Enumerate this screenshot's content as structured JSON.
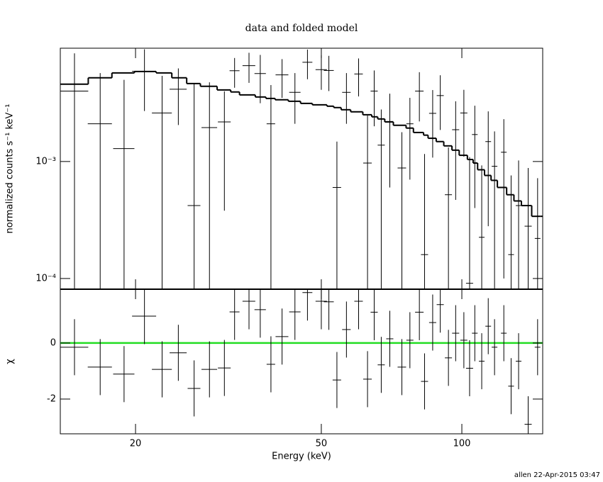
{
  "chart_data": [
    {
      "type": "errorbar",
      "title": "data and folded model",
      "y_label": "normalized counts s⁻¹ keV⁻¹",
      "xlog": true,
      "ylog": true,
      "xlim": [
        13.8,
        149
      ],
      "ylim": [
        8.1e-05,
        0.0093
      ],
      "yticks": [
        {
          "value": 0.0001,
          "label": "10⁻⁴"
        },
        {
          "value": 0.001,
          "label": "10⁻³"
        }
      ],
      "color": "#000000",
      "model_color": "#000000",
      "x": [
        14.8,
        16.8,
        18.9,
        20.9,
        22.8,
        24.7,
        26.7,
        28.8,
        31.0,
        32.6,
        35.0,
        37.0,
        39.0,
        41.2,
        43.9,
        46.7,
        50.0,
        51.9,
        54.0,
        56.6,
        60.1,
        62.8,
        64.9,
        67.2,
        70.1,
        74.4,
        77.4,
        81.1,
        83.2,
        86.6,
        89.9,
        93.6,
        97.0,
        101,
        103.9,
        106.6,
        110.3,
        113.9,
        117.5,
        123.0,
        127.5,
        132.3,
        138.7,
        145.3
      ],
      "x_err": [
        1.04,
        1.0,
        0.99,
        1.24,
        1.12,
        1.04,
        0.84,
        1.11,
        0.98,
        0.8,
        1.1,
        1.04,
        0.82,
        1.3,
        1.23,
        1.14,
        1.4,
        1.27,
        1.13,
        1.19,
        1.26,
        1.32,
        1.14,
        1.18,
        1.23,
        1.56,
        1.35,
        1.7,
        1.46,
        1.52,
        1.57,
        1.64,
        1.7,
        1.77,
        1.82,
        1.49,
        1.54,
        1.6,
        1.65,
        1.72,
        1.79,
        1.85,
        2.43,
        2.03
      ],
      "values": [
        0.004,
        0.0021,
        0.00129,
        0.0059,
        0.0026,
        0.00415,
        0.00042,
        0.00195,
        0.00218,
        0.00597,
        0.0066,
        0.00565,
        0.0021,
        0.0055,
        0.0039,
        0.00705,
        0.0061,
        0.006,
        0.0006,
        0.0039,
        0.0056,
        0.00097,
        0.004,
        0.00138,
        0.0022,
        0.00088,
        0.0021,
        0.004,
        0.00016,
        0.00258,
        0.00366,
        0.00052,
        0.00187,
        0.0026,
        9.1e-05,
        0.0017,
        0.000225,
        0.00148,
        0.00091,
        0.0012,
        0.00016,
        0.00042,
        0.00028,
        0.00022
      ],
      "errors": [
        0.0044,
        0.0036,
        0.0037,
        0.0032,
        0.0028,
        0.0021,
        0.0042,
        0.0028,
        0.0018,
        0.0017,
        0.0019,
        0.0025,
        0.0024,
        0.002,
        0.0018,
        0.002,
        0.002,
        0.002,
        0.00088,
        0.0018,
        0.002,
        0.0015,
        0.002,
        0.0014,
        0.0016,
        0.0009,
        0.0014,
        0.0018,
        0.001,
        0.0015,
        0.0018,
        0.0008,
        0.0014,
        0.0015,
        0.001,
        0.0013,
        0.0007,
        0.0012,
        0.0009,
        0.0011,
        0.0006,
        0.0006,
        0.0006,
        0.0005
      ],
      "model": [
        0.00458,
        0.00519,
        0.00572,
        0.00588,
        0.00572,
        0.00519,
        0.00464,
        0.00439,
        0.00409,
        0.00393,
        0.00371,
        0.00356,
        0.00346,
        0.00337,
        0.00327,
        0.00314,
        0.00305,
        0.00297,
        0.00289,
        0.00277,
        0.00266,
        0.00251,
        0.00241,
        0.00231,
        0.00218,
        0.00204,
        0.00193,
        0.00177,
        0.00168,
        0.00158,
        0.00148,
        0.00136,
        0.00125,
        0.00113,
        0.00104,
        0.00097,
        0.00085,
        0.00076,
        0.00069,
        0.0006,
        0.00052,
        0.00046,
        0.00042,
        0.00034
      ]
    },
    {
      "type": "residual",
      "x_label": "Energy (keV)",
      "y_label": "χ",
      "xlog": true,
      "xlim": [
        13.8,
        149
      ],
      "ylim": [
        -3.24,
        1.92
      ],
      "xticks": [
        20,
        50,
        100
      ],
      "yticks": [
        -2,
        0
      ],
      "color": "#000000",
      "reference": 0,
      "reference_color": "#22dd22",
      "x": [
        14.8,
        16.8,
        18.9,
        20.9,
        22.8,
        24.7,
        26.7,
        28.8,
        31.0,
        32.6,
        35.0,
        37.0,
        39.0,
        41.2,
        43.9,
        46.7,
        50.0,
        51.9,
        54.0,
        56.6,
        60.1,
        62.8,
        64.9,
        67.2,
        70.1,
        74.4,
        77.4,
        81.1,
        83.2,
        86.6,
        89.9,
        93.6,
        97.0,
        101,
        103.9,
        106.6,
        110.3,
        113.9,
        117.5,
        123.0,
        127.5,
        132.3,
        138.7,
        145.3
      ],
      "x_err": [
        1.04,
        1.0,
        0.99,
        1.24,
        1.12,
        1.04,
        0.84,
        1.11,
        0.98,
        0.8,
        1.1,
        1.04,
        0.82,
        1.3,
        1.23,
        1.14,
        1.4,
        1.27,
        1.13,
        1.19,
        1.26,
        1.32,
        1.14,
        1.18,
        1.23,
        1.56,
        1.35,
        1.7,
        1.46,
        1.52,
        1.57,
        1.64,
        1.7,
        1.77,
        1.82,
        1.49,
        1.54,
        1.6,
        1.65,
        1.72,
        1.79,
        1.85,
        2.43,
        2.03
      ],
      "values": [
        -0.15,
        -0.86,
        -1.11,
        0.96,
        -0.94,
        -0.35,
        -1.62,
        -0.94,
        -0.89,
        1.11,
        1.49,
        1.19,
        -0.76,
        0.23,
        1.11,
        1.8,
        1.49,
        1.47,
        -1.32,
        0.48,
        1.49,
        -1.29,
        1.1,
        -0.78,
        0.15,
        -0.86,
        0.1,
        1.1,
        -1.37,
        0.73,
        1.37,
        -0.53,
        0.35,
        0.1,
        -0.9,
        0.35,
        -0.65,
        0.6,
        -0.15,
        0.35,
        -1.54,
        -0.65,
        -2.9,
        -0.15
      ],
      "errors": [
        1,
        1,
        1,
        1,
        1,
        1,
        1,
        1,
        1,
        1,
        1,
        1,
        1,
        1,
        1,
        1,
        1,
        1,
        1,
        1,
        1,
        1,
        1,
        1,
        1,
        1,
        1,
        1,
        1,
        1,
        1,
        1,
        1,
        1,
        1,
        1,
        1,
        1,
        1,
        1,
        1,
        1,
        1,
        1
      ]
    }
  ],
  "footer": "allen 22-Apr-2015 03:47"
}
